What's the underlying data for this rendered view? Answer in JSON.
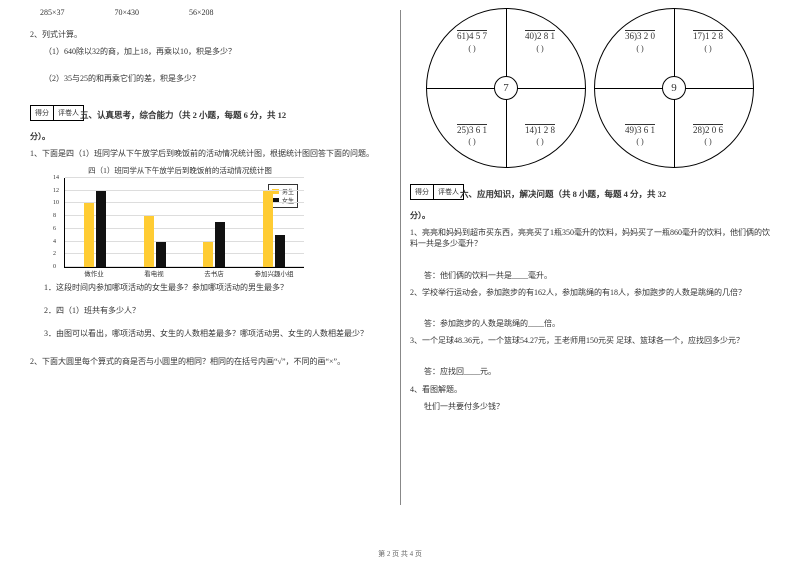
{
  "left": {
    "top_exprs": [
      "285×37",
      "70×430",
      "56×208"
    ],
    "q2": "2、列式计算。",
    "q2_1": "（1）640除以32的商，加上18，再乘以10，积是多少？",
    "q2_2": "（2）35与25的和再乘它们的差，积是多少？",
    "score_labels": [
      "得分",
      "评卷人"
    ],
    "section5": "五、认真思考，综合能力（共 2 小题，每题 6 分，共 12",
    "section5_tail": "分）。",
    "s5_q1": "1、下面是四（1）班同学从下午放学后到晚饭前的活动情况统计图，根据统计图回答下面的问题。",
    "chart_title": "四（1）班同学从下午放学后到晚饭前的活动情况统计图",
    "chart": {
      "ymax": 14,
      "ystep": 2,
      "categories": [
        "做作业",
        "看电视",
        "去书店",
        "参加兴趣小组"
      ],
      "boys": [
        10,
        8,
        4,
        12
      ],
      "girls": [
        12,
        4,
        7,
        5
      ],
      "boy_color": "#ffcc33",
      "girl_color": "#111111",
      "legend_boy": "男生",
      "legend_girl": "女生"
    },
    "s5_q1_1": "1．这段时间内参加哪项活动的女生最多？参加哪项活动的男生最多？",
    "s5_q1_2": "2．四（1）班共有多少人？",
    "s5_q1_3": "3．由图可以看出，哪项活动男、女生的人数相差最多？哪项活动男、女生的人数相差最少？",
    "s5_q2": "2、下面大圆里每个算式的商是否与小圆里的相同？相同的在括号内画“√”，不同的画“×”。"
  },
  "right": {
    "circle1_center": "7",
    "circle2_center": "9",
    "c1": {
      "q1": "61)4 5 7",
      "q2": "40)2 8 1",
      "q3": "25)3 6 1",
      "q4": "14)1 2 8"
    },
    "c2": {
      "q1": "36)3 2 0",
      "q2": "17)1 2 8",
      "q3": "49)3 6 1",
      "q4": "28)2 0 6"
    },
    "brackets": "(        )",
    "score_labels": [
      "得分",
      "评卷人"
    ],
    "section6": "六、应用知识，解决问题（共 8 小题，每题 4 分，共 32",
    "section6_tail": "分）。",
    "q1": "1、亮亮和妈妈到超市买东西，亮亮买了1瓶350毫升的饮料，妈妈买了一瓶860毫升的饮料，他们俩的饮料一共是多少毫升？",
    "a1": "答：他们俩的饮料一共是____毫升。",
    "q2": "2、学校举行运动会，参加跑步的有162人，参加跳绳的有18人，参加跑步的人数是跳绳的几倍？",
    "a2": "答：参加跑步的人数是跳绳的____倍。",
    "q3": "3、一个足球48.36元，一个篮球54.27元，王老师用150元买  足球、篮球各一个，应找回多少元？",
    "a3": "答：应找回____元。",
    "q4": "4、看图解题。",
    "q4b": "牡们一共要付多少钱？"
  },
  "footer": "第 2 页 共 4 页"
}
